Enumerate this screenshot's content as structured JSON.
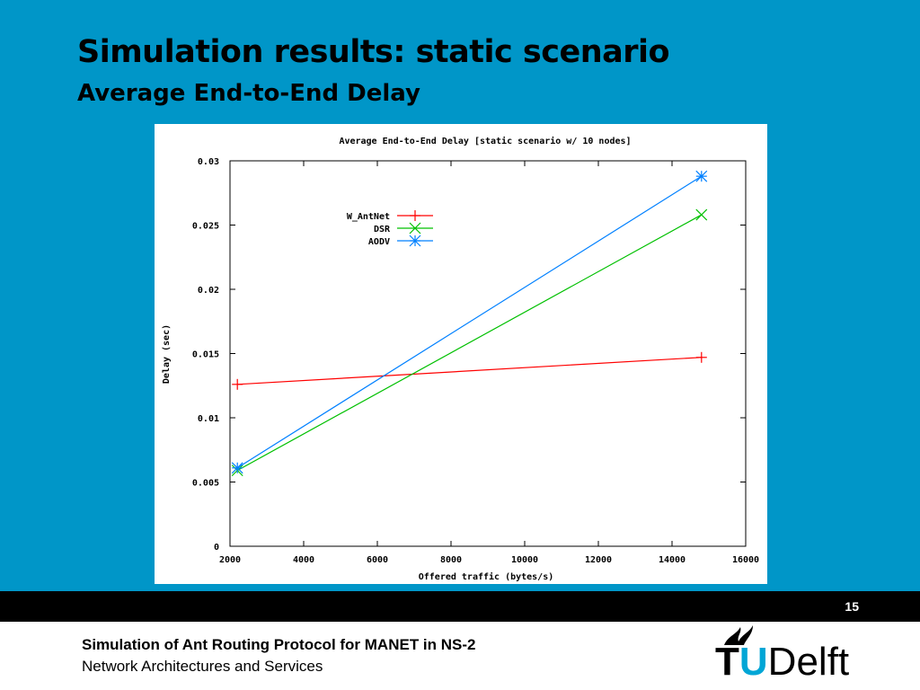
{
  "slide": {
    "title": "Simulation results: static scenario",
    "subtitle": "Average End-to-End Delay",
    "page_number": "15"
  },
  "footer": {
    "line1": "Simulation of Ant Routing Protocol for MANET in NS-2",
    "line2": "Network Architectures and Services",
    "logo": {
      "t": "T",
      "u": "U",
      "rest": "Delft"
    }
  },
  "chart_data": {
    "type": "line",
    "title": "Average End-to-End Delay [static scenario w/ 10 nodes]",
    "xlabel": "Offered traffic (bytes/s)",
    "ylabel": "Delay (sec)",
    "xlim": [
      2000,
      16000
    ],
    "ylim": [
      0,
      0.03
    ],
    "xticks": [
      "2000",
      "4000",
      "6000",
      "8000",
      "10000",
      "12000",
      "14000",
      "16000"
    ],
    "yticks": [
      "0",
      "0.005",
      "0.01",
      "0.015",
      "0.02",
      "0.025",
      "0.03"
    ],
    "legend_position": "top-left",
    "grid": false,
    "series": [
      {
        "name": "W_AntNet",
        "color": "#ff0000",
        "marker": "plus",
        "x": [
          2200,
          14800
        ],
        "y": [
          0.0126,
          0.0147
        ]
      },
      {
        "name": "DSR",
        "color": "#00c000",
        "marker": "cross",
        "x": [
          2200,
          14800
        ],
        "y": [
          0.0059,
          0.0258
        ]
      },
      {
        "name": "AODV",
        "color": "#0080ff",
        "marker": "star",
        "x": [
          2200,
          14800
        ],
        "y": [
          0.0061,
          0.0288
        ]
      }
    ]
  }
}
